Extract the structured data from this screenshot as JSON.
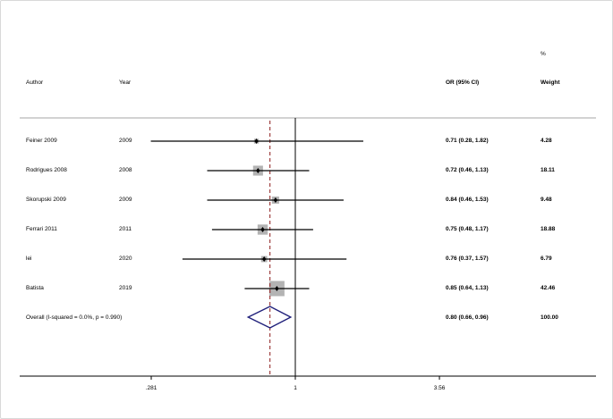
{
  "chart_data": {
    "type": "forest",
    "headers": {
      "author": "Author",
      "year": "Year",
      "or_ci": "OR (95% CI)",
      "weight_unit": "%",
      "weight": "Weight"
    },
    "studies": [
      {
        "author": "Feiner 2009",
        "year": "2009",
        "or": 0.71,
        "lo": 0.28,
        "hi": 1.82,
        "or_ci_text": "0.71 (0.28, 1.82)",
        "weight": 4.28,
        "weight_text": "4.28"
      },
      {
        "author": "Rodrigues 2008",
        "year": "2008",
        "or": 0.72,
        "lo": 0.46,
        "hi": 1.13,
        "or_ci_text": "0.72 (0.46, 1.13)",
        "weight": 18.11,
        "weight_text": "18.11"
      },
      {
        "author": "Skorupski 2009",
        "year": "2009",
        "or": 0.84,
        "lo": 0.46,
        "hi": 1.53,
        "or_ci_text": "0.84 (0.46, 1.53)",
        "weight": 9.48,
        "weight_text": "9.48"
      },
      {
        "author": "Ferrari 2011",
        "year": "2011",
        "or": 0.75,
        "lo": 0.48,
        "hi": 1.17,
        "or_ci_text": "0.75 (0.48, 1.17)",
        "weight": 18.88,
        "weight_text": "18.88"
      },
      {
        "author": "lei",
        "year": "2020",
        "or": 0.76,
        "lo": 0.37,
        "hi": 1.57,
        "or_ci_text": "0.76 (0.37, 1.57)",
        "weight": 6.79,
        "weight_text": "6.79"
      },
      {
        "author": "Batista",
        "year": "2019",
        "or": 0.85,
        "lo": 0.64,
        "hi": 1.13,
        "or_ci_text": "0.85 (0.64, 1.13)",
        "weight": 42.46,
        "weight_text": "42.46"
      }
    ],
    "overall": {
      "label": "Overall  (I-squared = 0.0%, p = 0.990)",
      "or": 0.8,
      "lo": 0.66,
      "hi": 0.96,
      "or_ci_text": "0.80 (0.66, 0.96)",
      "weight_text": "100.00"
    },
    "x_axis": {
      "scale": "log",
      "ticks": [
        0.281,
        1,
        3.56
      ],
      "tick_labels": [
        ".281",
        "1",
        "3.56"
      ]
    },
    "null_line": 1,
    "colors": {
      "box": "#b3b3b3",
      "ci_line": "#000000",
      "diamond": "#1f1f7a",
      "overall_line": "#8b1a1a",
      "separator": "#a6a6a6"
    }
  }
}
